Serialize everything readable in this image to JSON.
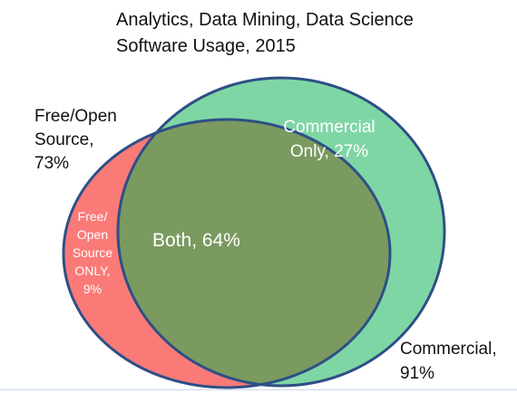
{
  "title": "Analytics, Data Mining, Data Science\nSoftware Usage, 2015",
  "sets": {
    "free_open_source": {
      "label": "Free/Open\nSource,\n73%",
      "percent": 73,
      "fill": "#fa7a78"
    },
    "commercial": {
      "label": "Commercial,\n91%",
      "percent": 91,
      "fill": "#7fd6a5"
    }
  },
  "regions": {
    "free_only": {
      "label": "Free/\nOpen\nSource\nONLY,\n9%",
      "percent": 9
    },
    "both": {
      "label": "Both, 64%",
      "percent": 64,
      "fill": "#7a9a60"
    },
    "commercial_only": {
      "label": "Commercial\nOnly, 27%",
      "percent": 27
    }
  },
  "outline_color": "#2e4f86"
}
